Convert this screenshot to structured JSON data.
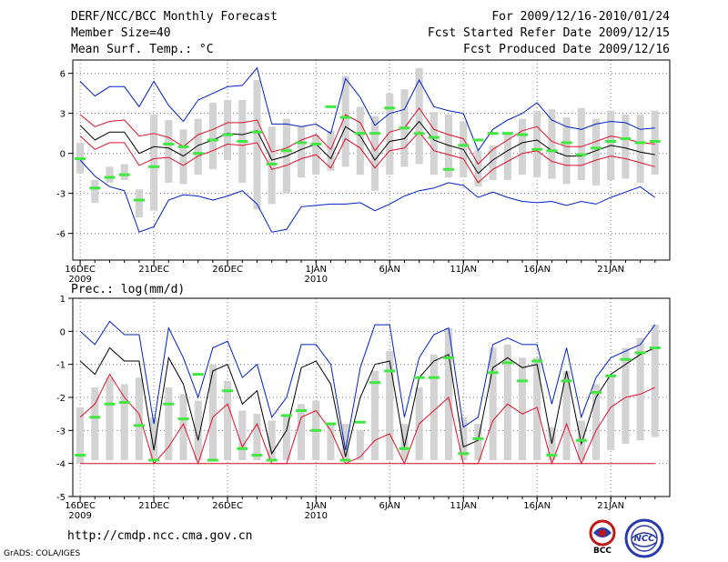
{
  "header": {
    "title": "DERF/NCC/BCC Monthly Forecast",
    "member_size": "Member Size=40",
    "variable": "Mean Surf. Temp.: °C",
    "period": "For 2009/12/16-2010/01/24",
    "refer_date": "Fcst Started Refer Date 2009/12/15",
    "produced_date": "Fcst Produced Date 2009/12/16"
  },
  "footer": {
    "url": "http://cmdp.ncc.cma.gov.cn",
    "credit": "GrADS: COLA/IGES",
    "logo_left_text": "BCC",
    "logo_right_text": "NCC"
  },
  "colors": {
    "bar": "#d3d3d3",
    "mean": "#000000",
    "spread": "#e0102a",
    "extreme": "#0020c8",
    "median": "#40e840",
    "grid": "#7a7a7a"
  },
  "chart_data": [
    {
      "type": "line",
      "title": "Mean Surf. Temp.: °C",
      "x_ticks": [
        {
          "day": 0,
          "label": "16DEC",
          "sub": "2009"
        },
        {
          "day": 5,
          "label": "21DEC",
          "sub": ""
        },
        {
          "day": 10,
          "label": "26DEC",
          "sub": ""
        },
        {
          "day": 16,
          "label": "1JAN",
          "sub": "2010"
        },
        {
          "day": 21,
          "label": "6JAN",
          "sub": ""
        },
        {
          "day": 26,
          "label": "11JAN",
          "sub": ""
        },
        {
          "day": 31,
          "label": "16JAN",
          "sub": ""
        },
        {
          "day": 36,
          "label": "21JAN",
          "sub": ""
        }
      ],
      "y_ticks": [
        "6",
        "3",
        "0",
        "-3",
        "-6"
      ],
      "y_tick_values": [
        6,
        3,
        0,
        -3,
        -6
      ],
      "ylim": [
        -8,
        7
      ],
      "xlim": [
        -0.5,
        40
      ],
      "days": 40,
      "series": [
        {
          "name": "max",
          "color_key": "extreme",
          "values": [
            5.4,
            4.3,
            5.0,
            5.0,
            3.5,
            5.4,
            3.6,
            2.4,
            4.0,
            4.5,
            5.0,
            5.1,
            6.4,
            2.2,
            2.2,
            2.0,
            2.2,
            1.5,
            5.6,
            4.2,
            2.1,
            3.0,
            3.3,
            5.5,
            3.5,
            3.2,
            3.0,
            0.2,
            1.8,
            2.5,
            3.0,
            3.8,
            2.5,
            2.0,
            1.8,
            2.2,
            2.4,
            2.3,
            1.8,
            1.9
          ]
        },
        {
          "name": "upper",
          "color_key": "spread",
          "values": [
            2.9,
            2.0,
            2.4,
            2.5,
            1.3,
            1.5,
            1.2,
            0.5,
            1.4,
            1.8,
            2.3,
            2.3,
            2.5,
            0.1,
            0.4,
            1.0,
            1.4,
            0.3,
            2.9,
            2.3,
            0.2,
            1.6,
            1.9,
            3.4,
            1.8,
            1.4,
            1.1,
            -0.8,
            0.3,
            1.0,
            1.7,
            2.0,
            0.9,
            0.5,
            0.5,
            0.9,
            1.3,
            1.1,
            0.8,
            0.7
          ]
        },
        {
          "name": "mean",
          "color_key": "mean",
          "values": [
            2.1,
            1.0,
            1.6,
            1.6,
            0.0,
            0.5,
            0.4,
            -0.2,
            0.6,
            1.0,
            1.5,
            1.4,
            1.7,
            -0.5,
            -0.2,
            0.3,
            0.7,
            -0.4,
            2.0,
            1.3,
            -0.5,
            0.9,
            1.1,
            2.4,
            1.0,
            0.6,
            0.3,
            -1.5,
            -0.5,
            0.2,
            0.8,
            1.0,
            0.2,
            -0.2,
            -0.2,
            0.2,
            0.6,
            0.4,
            0.1,
            -0.1
          ]
        },
        {
          "name": "lower",
          "color_key": "spread",
          "values": [
            1.3,
            0.3,
            0.8,
            0.8,
            -0.9,
            -0.4,
            -0.3,
            -0.9,
            -0.2,
            0.2,
            0.7,
            0.6,
            0.8,
            -1.2,
            -0.9,
            -0.4,
            -0.1,
            -1.1,
            1.1,
            0.4,
            -1.1,
            0.2,
            0.4,
            1.6,
            0.2,
            -0.1,
            -0.4,
            -2.2,
            -1.2,
            -0.6,
            0.0,
            0.2,
            -0.6,
            -0.9,
            -0.9,
            -0.5,
            -0.2,
            -0.4,
            -0.7,
            -1.0
          ]
        },
        {
          "name": "min",
          "color_key": "extreme",
          "values": [
            -0.5,
            -1.7,
            -2.5,
            -2.8,
            -5.9,
            -5.5,
            -3.5,
            -3.1,
            -3.2,
            -3.5,
            -3.2,
            -2.8,
            -3.8,
            -5.9,
            -5.7,
            -4.0,
            -3.9,
            -3.8,
            -3.8,
            -3.7,
            -4.3,
            -3.8,
            -3.2,
            -2.8,
            -2.6,
            -2.2,
            -2.4,
            -3.3,
            -2.9,
            -3.3,
            -3.6,
            -3.7,
            -3.6,
            -3.9,
            -3.6,
            -3.8,
            -3.3,
            -2.9,
            -2.5,
            -3.3
          ]
        }
      ],
      "bars": [
        {
          "low": -1.5,
          "high": 0.8
        },
        {
          "low": -3.7,
          "high": -2.0
        },
        {
          "low": -2.2,
          "high": -1.0
        },
        {
          "low": -2.0,
          "high": -0.8
        },
        {
          "low": -4.8,
          "high": -2.7
        },
        {
          "low": -4.3,
          "high": 2.9
        },
        {
          "low": -2.2,
          "high": 2.5
        },
        {
          "low": -2.3,
          "high": 1.8
        },
        {
          "low": -1.6,
          "high": 2.6
        },
        {
          "low": -1.2,
          "high": 3.8
        },
        {
          "low": -0.5,
          "high": 4.0
        },
        {
          "low": -2.2,
          "high": 4.0
        },
        {
          "low": -4.2,
          "high": 5.5
        },
        {
          "low": -3.8,
          "high": 2.0
        },
        {
          "low": -3.0,
          "high": 2.6
        },
        {
          "low": -1.8,
          "high": 2.0
        },
        {
          "low": -1.6,
          "high": 1.4
        },
        {
          "low": -1.3,
          "high": 1.7
        },
        {
          "low": -1.0,
          "high": 5.8
        },
        {
          "low": -1.6,
          "high": 3.5
        },
        {
          "low": -2.8,
          "high": 2.8
        },
        {
          "low": -1.6,
          "high": 4.5
        },
        {
          "low": -1.0,
          "high": 4.8
        },
        {
          "low": -0.8,
          "high": 6.4
        },
        {
          "low": -1.6,
          "high": 3.1
        },
        {
          "low": -1.8,
          "high": 2.9
        },
        {
          "low": -1.8,
          "high": 2.4
        },
        {
          "low": -2.5,
          "high": 0.2
        },
        {
          "low": -2.0,
          "high": 0.6
        },
        {
          "low": -2.0,
          "high": 1.6
        },
        {
          "low": -1.6,
          "high": 2.6
        },
        {
          "low": -1.8,
          "high": 3.2
        },
        {
          "low": -1.9,
          "high": 3.3
        },
        {
          "low": -2.3,
          "high": 2.7
        },
        {
          "low": -2.0,
          "high": 3.4
        },
        {
          "low": -2.4,
          "high": 2.6
        },
        {
          "low": -2.0,
          "high": 3.2
        },
        {
          "low": -1.9,
          "high": 2.9
        },
        {
          "low": -2.2,
          "high": 2.9
        },
        {
          "low": -1.6,
          "high": 3.2
        }
      ],
      "median": [
        -0.4,
        -2.6,
        -1.8,
        -1.6,
        -3.5,
        -1.0,
        0.7,
        0.5,
        0.0,
        1.0,
        1.4,
        0.9,
        1.6,
        -0.8,
        0.2,
        0.8,
        0.7,
        3.5,
        2.7,
        1.5,
        1.5,
        3.4,
        1.9,
        1.5,
        1.2,
        -1.2,
        0.6,
        1.0,
        1.5,
        1.5,
        1.4,
        0.3,
        0.2,
        0.8,
        -0.1,
        0.4,
        0.9,
        1.1,
        0.8,
        0.9
      ]
    },
    {
      "type": "line",
      "title": "Prec.: log(mm/d)",
      "x_ticks": [
        {
          "day": 0,
          "label": "16DEC",
          "sub": "2009"
        },
        {
          "day": 5,
          "label": "21DEC",
          "sub": ""
        },
        {
          "day": 10,
          "label": "26DEC",
          "sub": ""
        },
        {
          "day": 16,
          "label": "1JAN",
          "sub": "2010"
        },
        {
          "day": 21,
          "label": "6JAN",
          "sub": ""
        },
        {
          "day": 26,
          "label": "11JAN",
          "sub": ""
        },
        {
          "day": 31,
          "label": "16JAN",
          "sub": ""
        },
        {
          "day": 36,
          "label": "21JAN",
          "sub": ""
        }
      ],
      "y_ticks": [
        "1",
        "0",
        "-1",
        "-2",
        "-3",
        "-4",
        "-5"
      ],
      "y_tick_values": [
        1,
        0,
        -1,
        -2,
        -3,
        -4,
        -5
      ],
      "ylim": [
        -5,
        1
      ],
      "xlim": [
        -0.5,
        40
      ],
      "days": 40,
      "series": [
        {
          "name": "max",
          "color_key": "extreme",
          "values": [
            0.0,
            -0.4,
            0.3,
            -0.1,
            -0.1,
            -2.8,
            0.1,
            -0.8,
            -2.0,
            -0.5,
            -0.3,
            -1.4,
            -1.0,
            -2.6,
            -2.0,
            -0.4,
            -0.4,
            -1.0,
            -3.6,
            -1.1,
            0.2,
            0.2,
            -2.6,
            -0.8,
            -0.1,
            0.1,
            -2.9,
            -2.6,
            -0.4,
            -0.2,
            -0.4,
            -0.4,
            -2.2,
            -0.5,
            -2.6,
            -1.4,
            -0.8,
            -0.6,
            -0.4,
            0.2
          ]
        },
        {
          "name": "mean",
          "color_key": "mean",
          "values": [
            -0.9,
            -1.3,
            -0.5,
            -0.9,
            -0.9,
            -3.6,
            -0.8,
            -1.6,
            -3.3,
            -1.2,
            -1.0,
            -2.2,
            -1.8,
            -3.7,
            -3.0,
            -1.1,
            -0.9,
            -1.6,
            -3.8,
            -2.0,
            -1.0,
            -0.9,
            -3.5,
            -1.4,
            -0.9,
            -0.7,
            -3.5,
            -3.3,
            -1.1,
            -0.8,
            -1.1,
            -1.0,
            -3.4,
            -1.2,
            -3.4,
            -2.0,
            -1.3,
            -1.0,
            -0.7,
            -0.5
          ]
        },
        {
          "name": "lower",
          "color_key": "spread",
          "values": [
            -2.6,
            -2.2,
            -1.3,
            -2.0,
            -2.5,
            -4.0,
            -3.5,
            -2.8,
            -4.0,
            -2.6,
            -2.2,
            -3.5,
            -2.8,
            -4.0,
            -4.0,
            -2.6,
            -2.4,
            -3.0,
            -4.0,
            -3.8,
            -3.3,
            -3.1,
            -4.0,
            -2.8,
            -2.4,
            -2.0,
            -4.0,
            -4.0,
            -2.7,
            -2.2,
            -2.5,
            -2.3,
            -4.0,
            -2.8,
            -4.0,
            -3.0,
            -2.3,
            -2.0,
            -1.9,
            -1.7
          ]
        },
        {
          "name": "min",
          "color_key": "spread",
          "values": [
            -4.0,
            -4.0,
            -4.0,
            -4.0,
            -4.0,
            -4.0,
            -4.0,
            -4.0,
            -4.0,
            -4.0,
            -4.0,
            -4.0,
            -4.0,
            -4.0,
            -4.0,
            -4.0,
            -4.0,
            -4.0,
            -4.0,
            -4.0,
            -4.0,
            -4.0,
            -4.0,
            -4.0,
            -4.0,
            -4.0,
            -4.0,
            -4.0,
            -4.0,
            -4.0,
            -4.0,
            -4.0,
            -4.0,
            -4.0,
            -4.0,
            -4.0,
            -4.0,
            -4.0,
            -4.0,
            -4.0
          ]
        }
      ],
      "bars": [
        {
          "low": -4.0,
          "high": -2.3
        },
        {
          "low": -3.9,
          "high": -1.7
        },
        {
          "low": -3.9,
          "high": -1.4
        },
        {
          "low": -3.9,
          "high": -1.6
        },
        {
          "low": -3.9,
          "high": -1.4
        },
        {
          "low": -3.9,
          "high": -2.6
        },
        {
          "low": -3.9,
          "high": -1.7
        },
        {
          "low": -3.9,
          "high": -1.9
        },
        {
          "low": -3.9,
          "high": -2.1
        },
        {
          "low": -3.9,
          "high": -1.0
        },
        {
          "low": -3.9,
          "high": -1.5
        },
        {
          "low": -3.9,
          "high": -2.4
        },
        {
          "low": -3.9,
          "high": -2.5
        },
        {
          "low": -3.9,
          "high": -2.7
        },
        {
          "low": -3.9,
          "high": -2.5
        },
        {
          "low": -3.9,
          "high": -2.2
        },
        {
          "low": -3.9,
          "high": -2.1
        },
        {
          "low": -3.9,
          "high": -2.8
        },
        {
          "low": -3.9,
          "high": -2.8
        },
        {
          "low": -3.9,
          "high": -3.0
        },
        {
          "low": -3.9,
          "high": -1.2
        },
        {
          "low": -3.9,
          "high": -0.6
        },
        {
          "low": -3.9,
          "high": -2.8
        },
        {
          "low": -3.9,
          "high": -1.7
        },
        {
          "low": -3.9,
          "high": -0.7
        },
        {
          "low": -3.9,
          "high": 0.1
        },
        {
          "low": -3.9,
          "high": -2.6
        },
        {
          "low": -3.9,
          "high": -2.8
        },
        {
          "low": -3.9,
          "high": -0.5
        },
        {
          "low": -3.9,
          "high": -0.4
        },
        {
          "low": -3.9,
          "high": -0.8
        },
        {
          "low": -3.9,
          "high": -0.8
        },
        {
          "low": -3.9,
          "high": -2.9
        },
        {
          "low": -3.9,
          "high": -1.2
        },
        {
          "low": -3.9,
          "high": -2.7
        },
        {
          "low": -3.9,
          "high": -1.6
        },
        {
          "low": -3.6,
          "high": -1.3
        },
        {
          "low": -3.4,
          "high": -0.5
        },
        {
          "low": -3.3,
          "high": -0.2
        },
        {
          "low": -3.2,
          "high": 0.2
        }
      ],
      "median": [
        -3.75,
        -2.6,
        -2.2,
        -2.15,
        -2.85,
        -3.9,
        -2.2,
        -2.65,
        -1.3,
        -3.9,
        -1.8,
        -3.55,
        -3.75,
        -3.9,
        -2.55,
        -2.4,
        -3.0,
        -2.8,
        -3.9,
        -2.75,
        -1.55,
        -1.2,
        -3.55,
        -1.4,
        -1.4,
        -0.8,
        -3.7,
        -3.25,
        -1.25,
        -0.95,
        -1.5,
        -0.9,
        -3.75,
        -1.5,
        -3.3,
        -1.85,
        -1.35,
        -0.85,
        -0.65,
        -0.5
      ]
    }
  ]
}
